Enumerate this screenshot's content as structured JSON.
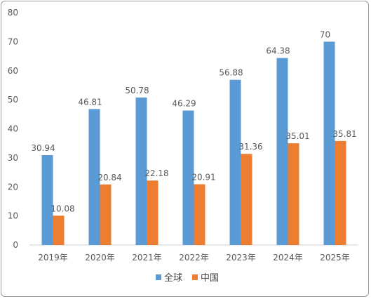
{
  "chart_data": {
    "type": "bar",
    "title": "",
    "xlabel": "",
    "ylabel": "",
    "categories": [
      "2019年",
      "2020年",
      "2021年",
      "2022年",
      "2023年",
      "2024年",
      "2025年"
    ],
    "series": [
      {
        "name": "全球",
        "color": "#5b9bd5",
        "values": [
          30.94,
          46.81,
          50.78,
          46.29,
          56.88,
          64.38,
          70
        ]
      },
      {
        "name": "中国",
        "color": "#ed7d31",
        "values": [
          10.08,
          20.84,
          22.18,
          20.91,
          31.36,
          35.01,
          35.81
        ]
      }
    ],
    "ylim": [
      0,
      80
    ],
    "yticks": [
      0,
      10,
      20,
      30,
      40,
      50,
      60,
      70,
      80
    ],
    "grid": false,
    "legend_position": "bottom",
    "data_labels_shown": true
  }
}
